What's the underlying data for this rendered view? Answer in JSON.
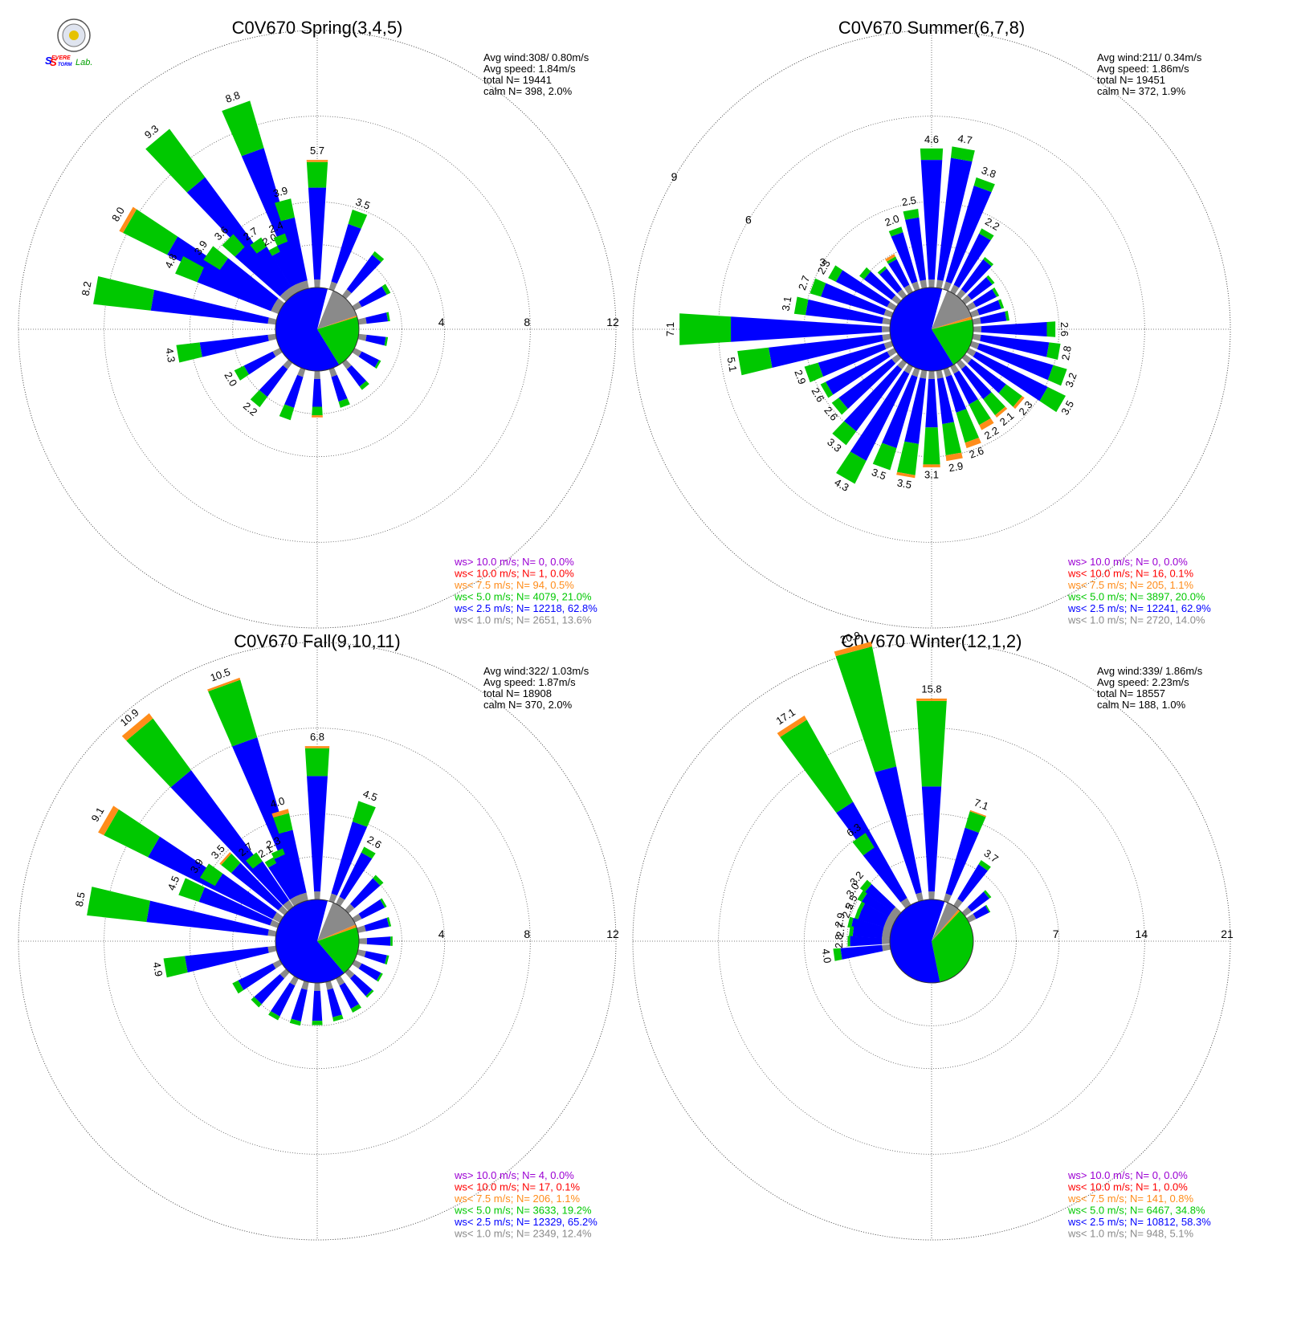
{
  "logo": {
    "name": "severe-storm-lab-logo",
    "text_parts": [
      "S",
      "EVERE",
      "S",
      "TORM",
      "Lab."
    ]
  },
  "colors": {
    "gt10": "#9b00d3",
    "lt10": "#ff0000",
    "lt75": "#ff8c1a",
    "lt5": "#00c800",
    "lt25": "#0000ff",
    "lt1": "#8a8a8a",
    "grid": "#555555",
    "text": "#000000"
  },
  "chart_data": [
    {
      "type": "windrose",
      "title": "C0V670 Spring(3,4,5)",
      "ring_labels": [
        "4",
        "8",
        "12"
      ],
      "stats": [
        "Avg wind:308/ 0.80m/s",
        "Avg speed: 1.84m/s",
        "total N=      19441",
        "calm N=    398,   2.0%"
      ],
      "legend": [
        {
          "key": "gt10",
          "text": "ws> 10.0 m/s; N=      0,  0.0%"
        },
        {
          "key": "lt10",
          "text": "ws< 10.0 m/s; N=      1,  0.0%"
        },
        {
          "key": "lt75",
          "text": "ws<  7.5 m/s; N=     94,  0.5%"
        },
        {
          "key": "lt5",
          "text": "ws<  5.0 m/s; N=  4079, 21.0%"
        },
        {
          "key": "lt25",
          "text": "ws<  2.5 m/s; N= 12218, 62.8%"
        },
        {
          "key": "lt1",
          "text": "ws<  1.0 m/s; N=  2651, 13.6%"
        }
      ],
      "calm_pie": {
        "lt25": 62.8,
        "lt5": 21.0,
        "lt75": 0.5,
        "lt1": 13.6
      },
      "bars": [
        {
          "dir": 300,
          "lt25": 5.5,
          "lt5": 2.3,
          "lt75": 0.2,
          "label": "8.0"
        },
        {
          "dir": 320,
          "lt25": 6.5,
          "lt5": 2.8,
          "label": "9.3"
        },
        {
          "dir": 340,
          "lt25": 6.5,
          "lt5": 2.3,
          "label": "8.8"
        },
        {
          "dir": 0,
          "lt25": 4.3,
          "lt5": 1.2,
          "lt75": 0.1,
          "label": "5.7"
        },
        {
          "dir": 20,
          "lt25": 2.8,
          "lt5": 0.7,
          "label": "3.5"
        },
        {
          "dir": 40,
          "lt25": 2.0,
          "lt5": 0.2
        },
        {
          "dir": 60,
          "lt25": 1.3,
          "lt5": 0.2
        },
        {
          "dir": 80,
          "lt25": 1.0,
          "lt5": 0.1
        },
        {
          "dir": 100,
          "lt25": 0.9,
          "lt5": 0.1
        },
        {
          "dir": 120,
          "lt25": 0.9,
          "lt5": 0.1
        },
        {
          "dir": 140,
          "lt25": 1.0,
          "lt5": 0.2
        },
        {
          "dir": 160,
          "lt25": 1.2,
          "lt5": 0.3
        },
        {
          "dir": 180,
          "lt25": 1.3,
          "lt5": 0.4,
          "lt75": 0.1
        },
        {
          "dir": 200,
          "lt25": 1.5,
          "lt5": 0.6
        },
        {
          "dir": 220,
          "lt25": 1.6,
          "lt5": 0.6,
          "label": "2.2"
        },
        {
          "dir": 240,
          "lt25": 1.5,
          "lt5": 0.5,
          "label": "2.0"
        },
        {
          "dir": 260,
          "lt25": 3.2,
          "lt5": 1.1,
          "label": "4.3"
        },
        {
          "dir": 280,
          "lt25": 5.5,
          "lt5": 2.7,
          "label": "8.2"
        },
        {
          "dir": 295,
          "lt25": 3.7,
          "lt5": 1.1,
          "label": "4.8"
        },
        {
          "dir": 305,
          "lt25": 3.0,
          "lt5": 0.9,
          "label": "3.9"
        },
        {
          "dir": 315,
          "lt25": 2.8,
          "lt5": 0.8,
          "label": "3.6"
        },
        {
          "dir": 325,
          "lt25": 2.2,
          "lt5": 0.5,
          "label": "2.7"
        },
        {
          "dir": 332,
          "lt25": 1.7,
          "lt5": 0.3,
          "label": "2.0"
        },
        {
          "dir": 338,
          "lt25": 2.0,
          "lt5": 0.4,
          "label": "2.4"
        },
        {
          "dir": 345,
          "lt25": 3.0,
          "lt5": 0.9,
          "label": "3.9"
        }
      ]
    },
    {
      "type": "windrose",
      "title": "C0V670 Summer(6,7,8)",
      "ring_labels": [
        "3",
        "6",
        "9"
      ],
      "stats": [
        "Avg wind:211/ 0.34m/s",
        "Avg speed: 1.86m/s",
        "total N=      19451",
        "calm N=    372,   1.9%"
      ],
      "legend": [
        {
          "key": "gt10",
          "text": "ws> 10.0 m/s; N=      0,  0.0%"
        },
        {
          "key": "lt10",
          "text": "ws< 10.0 m/s; N=     16,  0.1%"
        },
        {
          "key": "lt75",
          "text": "ws<  7.5 m/s; N=    205,  1.1%"
        },
        {
          "key": "lt5",
          "text": "ws<  5.0 m/s; N=  3897, 20.0%"
        },
        {
          "key": "lt25",
          "text": "ws<  2.5 m/s; N= 12241, 62.9%"
        },
        {
          "key": "lt1",
          "text": "ws<  1.0 m/s; N=  2720, 14.0%"
        }
      ],
      "calm_pie": {
        "lt25": 62.9,
        "lt5": 20.0,
        "lt75": 1.1,
        "lt1": 14.0
      },
      "bars": [
        {
          "dir": 340,
          "lt25": 1.8,
          "lt5": 0.2,
          "label": "2.0"
        },
        {
          "dir": 350,
          "lt25": 2.2,
          "lt5": 0.3,
          "label": "2.5"
        },
        {
          "dir": 0,
          "lt25": 4.2,
          "lt5": 0.4,
          "label": "4.6"
        },
        {
          "dir": 10,
          "lt25": 4.3,
          "lt5": 0.4,
          "label": "4.7"
        },
        {
          "dir": 20,
          "lt25": 3.5,
          "lt5": 0.3,
          "label": "3.8"
        },
        {
          "dir": 30,
          "lt25": 2.0,
          "lt5": 0.2,
          "label": "2.2"
        },
        {
          "dir": 40,
          "lt25": 1.3,
          "lt5": 0.1
        },
        {
          "dir": 50,
          "lt25": 0.9,
          "lt5": 0.1
        },
        {
          "dir": 60,
          "lt25": 0.8,
          "lt5": 0.1
        },
        {
          "dir": 70,
          "lt25": 0.8,
          "lt5": 0.1
        },
        {
          "dir": 80,
          "lt25": 0.9,
          "lt5": 0.1
        },
        {
          "dir": 90,
          "lt25": 2.3,
          "lt5": 0.3,
          "label": "2.6"
        },
        {
          "dir": 100,
          "lt25": 2.4,
          "lt5": 0.4,
          "label": "2.8"
        },
        {
          "dir": 110,
          "lt25": 2.7,
          "lt5": 0.5,
          "label": "3.2"
        },
        {
          "dir": 120,
          "lt25": 2.8,
          "lt5": 0.7,
          "label": "3.5"
        },
        {
          "dir": 130,
          "lt25": 1.5,
          "lt5": 0.7,
          "lt75": 0.1,
          "label": "2.3"
        },
        {
          "dir": 140,
          "lt25": 1.3,
          "lt5": 0.7,
          "lt75": 0.1,
          "label": "2.1"
        },
        {
          "dir": 150,
          "lt25": 1.2,
          "lt5": 0.8,
          "lt75": 0.2,
          "label": "2.2"
        },
        {
          "dir": 160,
          "lt25": 1.3,
          "lt5": 1.1,
          "lt75": 0.2,
          "label": "2.6"
        },
        {
          "dir": 170,
          "lt25": 1.6,
          "lt5": 1.1,
          "lt75": 0.2,
          "label": "2.9"
        },
        {
          "dir": 180,
          "lt25": 1.7,
          "lt5": 1.3,
          "lt75": 0.1,
          "label": "3.1"
        },
        {
          "dir": 190,
          "lt25": 2.3,
          "lt5": 1.1,
          "lt75": 0.1,
          "label": "3.5"
        },
        {
          "dir": 200,
          "lt25": 2.6,
          "lt5": 0.8,
          "label": "3.5"
        },
        {
          "dir": 210,
          "lt25": 3.4,
          "lt5": 0.9,
          "label": "4.3"
        },
        {
          "dir": 220,
          "lt25": 2.7,
          "lt5": 0.6,
          "label": "3.3"
        },
        {
          "dir": 230,
          "lt25": 2.3,
          "lt5": 0.3,
          "label": "2.6"
        },
        {
          "dir": 240,
          "lt25": 2.4,
          "lt5": 0.2,
          "label": "2.6"
        },
        {
          "dir": 250,
          "lt25": 2.4,
          "lt5": 0.5,
          "label": "2.9"
        },
        {
          "dir": 260,
          "lt25": 4.0,
          "lt5": 1.1,
          "label": "5.1"
        },
        {
          "dir": 270,
          "lt25": 5.3,
          "lt5": 1.8,
          "label": "7.1"
        },
        {
          "dir": 280,
          "lt25": 2.7,
          "lt5": 0.4,
          "label": "3.1"
        },
        {
          "dir": 290,
          "lt25": 2.3,
          "lt5": 0.4,
          "label": "2.7"
        },
        {
          "dir": 300,
          "lt25": 2.0,
          "lt5": 0.3,
          "label": "2.3"
        },
        {
          "dir": 310,
          "lt25": 1.2,
          "lt5": 0.2
        },
        {
          "dir": 320,
          "lt25": 0.9,
          "lt5": 0.1
        },
        {
          "dir": 330,
          "lt25": 1.0,
          "lt5": 0.1,
          "lt75": 0.1
        }
      ]
    },
    {
      "type": "windrose",
      "title": "C0V670 Fall(9,10,11)",
      "ring_labels": [
        "4",
        "8",
        "12"
      ],
      "stats": [
        "Avg wind:322/ 1.03m/s",
        "Avg speed: 1.87m/s",
        "total N=      18908",
        "calm N=    370,   2.0%"
      ],
      "legend": [
        {
          "key": "gt10",
          "text": "ws> 10.0 m/s; N=      4,  0.0%"
        },
        {
          "key": "lt10",
          "text": "ws< 10.0 m/s; N=     17,  0.1%"
        },
        {
          "key": "lt75",
          "text": "ws<  7.5 m/s; N=    206,  1.1%"
        },
        {
          "key": "lt5",
          "text": "ws<  5.0 m/s; N=  3633, 19.2%"
        },
        {
          "key": "lt25",
          "text": "ws<  2.5 m/s; N= 12329, 65.2%"
        },
        {
          "key": "lt1",
          "text": "ws<  1.0 m/s; N=  2349, 12.4%"
        }
      ],
      "calm_pie": {
        "lt25": 65.2,
        "lt5": 19.2,
        "lt75": 1.1,
        "lt1": 12.4
      },
      "bars": [
        {
          "dir": 300,
          "lt25": 6.5,
          "lt5": 2.3,
          "lt75": 0.3,
          "label": "9.1"
        },
        {
          "dir": 320,
          "lt25": 7.6,
          "lt5": 3.0,
          "lt75": 0.3,
          "label": "10.9"
        },
        {
          "dir": 340,
          "lt25": 7.6,
          "lt5": 2.8,
          "lt75": 0.1,
          "label": "10.5"
        },
        {
          "dir": 0,
          "lt25": 5.4,
          "lt5": 1.3,
          "lt75": 0.1,
          "label": "6.8"
        },
        {
          "dir": 20,
          "lt25": 3.5,
          "lt5": 1.0,
          "label": "4.5"
        },
        {
          "dir": 30,
          "lt25": 2.3,
          "lt5": 0.3,
          "label": "2.6"
        },
        {
          "dir": 45,
          "lt25": 1.6,
          "lt5": 0.2
        },
        {
          "dir": 60,
          "lt25": 1.2,
          "lt5": 0.1
        },
        {
          "dir": 75,
          "lt25": 1.1,
          "lt5": 0.1
        },
        {
          "dir": 90,
          "lt25": 1.1,
          "lt5": 0.1
        },
        {
          "dir": 105,
          "lt25": 1.0,
          "lt5": 0.1
        },
        {
          "dir": 120,
          "lt25": 1.0,
          "lt5": 0.1
        },
        {
          "dir": 135,
          "lt25": 1.1,
          "lt5": 0.1
        },
        {
          "dir": 150,
          "lt25": 1.2,
          "lt5": 0.2
        },
        {
          "dir": 165,
          "lt25": 1.3,
          "lt5": 0.2
        },
        {
          "dir": 180,
          "lt25": 1.4,
          "lt5": 0.2
        },
        {
          "dir": 195,
          "lt25": 1.5,
          "lt5": 0.2
        },
        {
          "dir": 210,
          "lt25": 1.6,
          "lt5": 0.2
        },
        {
          "dir": 225,
          "lt25": 1.6,
          "lt5": 0.2
        },
        {
          "dir": 240,
          "lt25": 1.8,
          "lt5": 0.3
        },
        {
          "dir": 260,
          "lt25": 3.9,
          "lt5": 1.0,
          "label": "4.9"
        },
        {
          "dir": 280,
          "lt25": 5.7,
          "lt5": 2.8,
          "label": "8.5"
        },
        {
          "dir": 292,
          "lt25": 3.5,
          "lt5": 1.0,
          "label": "4.5"
        },
        {
          "dir": 302,
          "lt25": 3.1,
          "lt5": 0.8,
          "label": "3.9"
        },
        {
          "dir": 312,
          "lt25": 2.8,
          "lt5": 0.6,
          "lt75": 0.1,
          "label": "3.5"
        },
        {
          "dir": 322,
          "lt25": 2.2,
          "lt5": 0.5,
          "label": "2.7"
        },
        {
          "dir": 330,
          "lt25": 1.8,
          "lt5": 0.3,
          "label": "2.1"
        },
        {
          "dir": 336,
          "lt25": 2.0,
          "lt5": 0.3,
          "label": "2.3"
        },
        {
          "dir": 344,
          "lt25": 3.0,
          "lt5": 0.8,
          "lt75": 0.2,
          "label": "4.0"
        }
      ]
    },
    {
      "type": "windrose",
      "title": "C0V670 Winter(12,1,2)",
      "ring_labels": [
        "7",
        "14",
        "21"
      ],
      "stats": [
        "Avg wind:339/ 1.86m/s",
        "Avg speed: 2.23m/s",
        "total N=      18557",
        "calm N=    188,   1.0%"
      ],
      "legend": [
        {
          "key": "gt10",
          "text": "ws> 10.0 m/s; N=      0,  0.0%"
        },
        {
          "key": "lt10",
          "text": "ws< 10.0 m/s; N=      1,  0.0%"
        },
        {
          "key": "lt75",
          "text": "ws<  7.5 m/s; N=    141,  0.8%"
        },
        {
          "key": "lt5",
          "text": "ws<  5.0 m/s; N=  6467, 34.8%"
        },
        {
          "key": "lt25",
          "text": "ws<  2.5 m/s; N= 10812, 58.3%"
        },
        {
          "key": "lt1",
          "text": "ws<  1.0 m/s; N=    948,  5.1%"
        }
      ],
      "calm_pie": {
        "lt25": 58.3,
        "lt5": 34.8,
        "lt75": 0.8,
        "lt1": 5.1
      },
      "bars": [
        {
          "dir": 327,
          "lt25": 9.0,
          "lt5": 7.7,
          "lt75": 0.4,
          "label": "17.1"
        },
        {
          "dir": 345,
          "lt25": 10.5,
          "lt5": 10.0,
          "lt75": 0.4,
          "label": "20.9"
        },
        {
          "dir": 0,
          "lt25": 8.6,
          "lt5": 7.0,
          "lt75": 0.2,
          "label": "15.8"
        },
        {
          "dir": 20,
          "lt25": 5.6,
          "lt5": 1.4,
          "lt75": 0.1,
          "label": "7.1"
        },
        {
          "dir": 35,
          "lt25": 3.3,
          "lt5": 0.4,
          "label": "3.7"
        },
        {
          "dir": 50,
          "lt25": 1.8,
          "lt5": 0.2
        },
        {
          "dir": 60,
          "lt25": 1.2,
          "lt5": 0.1
        },
        {
          "dir": 325,
          "lt25": 4.9,
          "lt5": 1.4,
          "label": "6.3"
        },
        {
          "dir": 310,
          "lt25": 2.7,
          "lt5": 0.5,
          "label": "3.2"
        },
        {
          "dir": 303,
          "lt25": 2.5,
          "lt5": 0.4,
          "label": "3.0"
        },
        {
          "dir": 296,
          "lt25": 2.2,
          "lt5": 0.3,
          "label": "2.5"
        },
        {
          "dir": 290,
          "lt25": 2.2,
          "lt5": 0.3,
          "label": "2.5"
        },
        {
          "dir": 283,
          "lt25": 2.6,
          "lt5": 0.3,
          "label": "2.9"
        },
        {
          "dir": 277,
          "lt25": 2.4,
          "lt5": 0.3,
          "label": "2.7"
        },
        {
          "dir": 270,
          "lt25": 2.6,
          "lt5": 0.2,
          "label": "2.8"
        },
        {
          "dir": 262,
          "lt25": 3.4,
          "lt5": 0.6,
          "label": "4.0"
        }
      ]
    }
  ]
}
